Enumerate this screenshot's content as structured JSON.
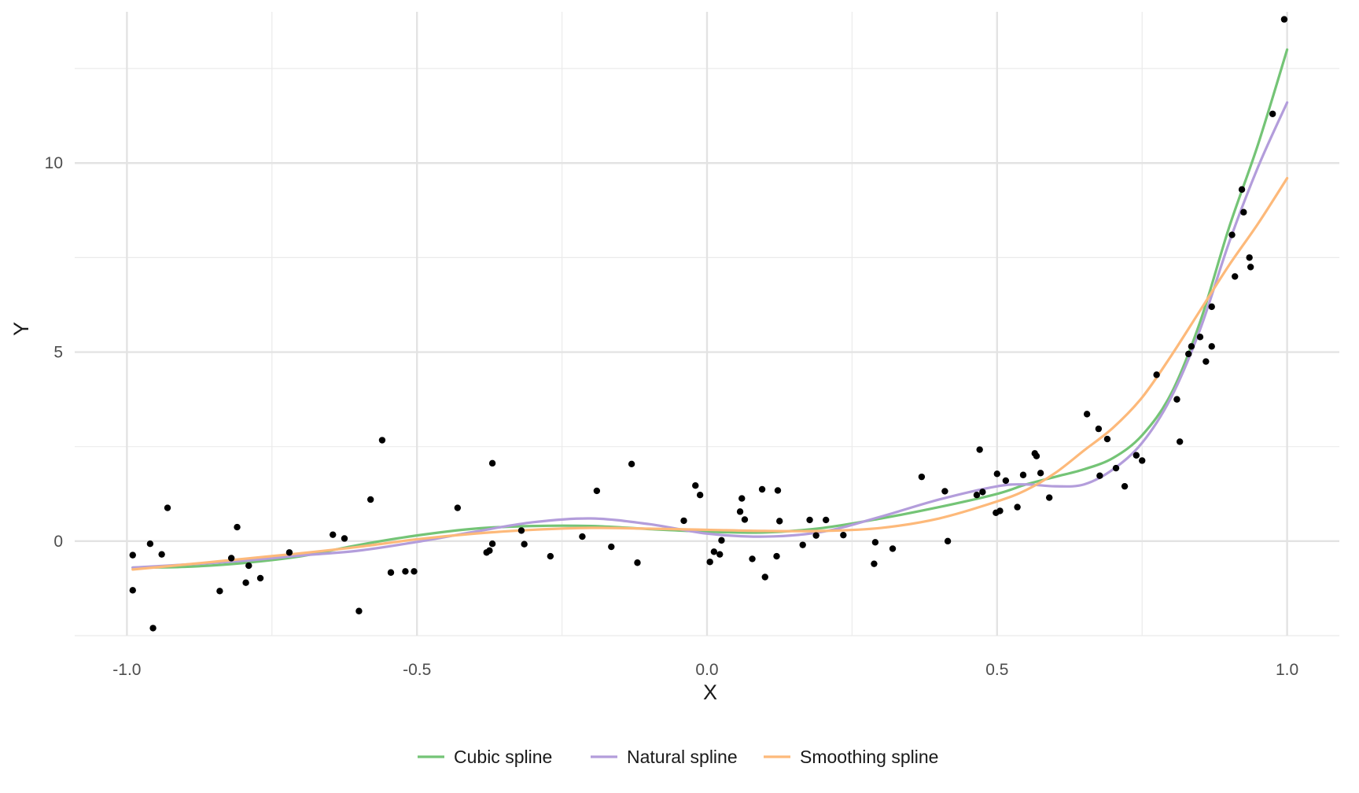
{
  "chart_data": {
    "type": "scatter",
    "title": "",
    "xlabel": "X",
    "ylabel": "Y",
    "xlim": [
      -1.09,
      1.09
    ],
    "ylim": [
      -2.5,
      14.0
    ],
    "x_ticks": [
      -1.0,
      -0.5,
      0.0,
      0.5,
      1.0
    ],
    "x_tick_labels": [
      "-1.0",
      "-0.5",
      "0.0",
      "0.5",
      "1.0"
    ],
    "y_ticks": [
      0,
      5,
      10
    ],
    "y_tick_labels": [
      "0",
      "5",
      "10"
    ],
    "x_minor_ticks": [
      -0.75,
      -0.25,
      0.25,
      0.75
    ],
    "y_minor_ticks": [
      -2.5,
      2.5,
      7.5,
      12.5
    ],
    "grid": true,
    "legend_position": "bottom",
    "points": [
      [
        -0.99,
        -1.3
      ],
      [
        -0.99,
        -0.37
      ],
      [
        -0.96,
        -0.07
      ],
      [
        -0.955,
        -2.3
      ],
      [
        -0.94,
        -0.35
      ],
      [
        -0.93,
        0.88
      ],
      [
        -0.84,
        -1.32
      ],
      [
        -0.82,
        -0.45
      ],
      [
        -0.81,
        0.37
      ],
      [
        -0.795,
        -1.1
      ],
      [
        -0.79,
        -0.65
      ],
      [
        -0.77,
        -0.98
      ],
      [
        -0.72,
        -0.3
      ],
      [
        -0.645,
        0.17
      ],
      [
        -0.625,
        0.07
      ],
      [
        -0.6,
        -1.85
      ],
      [
        -0.58,
        1.1
      ],
      [
        -0.56,
        2.67
      ],
      [
        -0.545,
        -0.83
      ],
      [
        -0.52,
        -0.8
      ],
      [
        -0.505,
        -0.8
      ],
      [
        -0.43,
        0.88
      ],
      [
        -0.38,
        -0.3
      ],
      [
        -0.375,
        -0.25
      ],
      [
        -0.37,
        -0.07
      ],
      [
        -0.37,
        2.06
      ],
      [
        -0.32,
        0.28
      ],
      [
        -0.315,
        -0.08
      ],
      [
        -0.27,
        -0.4
      ],
      [
        -0.215,
        0.12
      ],
      [
        -0.19,
        1.33
      ],
      [
        -0.165,
        -0.15
      ],
      [
        -0.13,
        2.04
      ],
      [
        -0.12,
        -0.57
      ],
      [
        -0.04,
        0.54
      ],
      [
        -0.02,
        1.47
      ],
      [
        -0.012,
        1.22
      ],
      [
        0.005,
        -0.55
      ],
      [
        0.012,
        -0.28
      ],
      [
        0.022,
        -0.35
      ],
      [
        0.025,
        0.02
      ],
      [
        0.057,
        0.78
      ],
      [
        0.06,
        1.13
      ],
      [
        0.065,
        0.57
      ],
      [
        0.078,
        -0.47
      ],
      [
        0.095,
        1.37
      ],
      [
        0.1,
        -0.95
      ],
      [
        0.12,
        -0.4
      ],
      [
        0.122,
        1.34
      ],
      [
        0.125,
        0.53
      ],
      [
        0.165,
        -0.1
      ],
      [
        0.177,
        0.56
      ],
      [
        0.188,
        0.15
      ],
      [
        0.205,
        0.56
      ],
      [
        0.235,
        0.16
      ],
      [
        0.288,
        -0.6
      ],
      [
        0.29,
        -0.03
      ],
      [
        0.32,
        -0.2
      ],
      [
        0.37,
        1.7
      ],
      [
        0.41,
        1.32
      ],
      [
        0.415,
        0.0
      ],
      [
        0.465,
        1.22
      ],
      [
        0.47,
        2.42
      ],
      [
        0.475,
        1.3
      ],
      [
        0.498,
        0.75
      ],
      [
        0.5,
        1.78
      ],
      [
        0.505,
        0.8
      ],
      [
        0.515,
        1.6
      ],
      [
        0.535,
        0.9
      ],
      [
        0.545,
        1.75
      ],
      [
        0.565,
        2.32
      ],
      [
        0.568,
        2.25
      ],
      [
        0.575,
        1.8
      ],
      [
        0.59,
        1.15
      ],
      [
        0.655,
        3.36
      ],
      [
        0.675,
        2.97
      ],
      [
        0.677,
        1.73
      ],
      [
        0.69,
        2.7
      ],
      [
        0.705,
        1.93
      ],
      [
        0.72,
        1.45
      ],
      [
        0.74,
        2.27
      ],
      [
        0.75,
        2.13
      ],
      [
        0.775,
        4.4
      ],
      [
        0.81,
        3.75
      ],
      [
        0.815,
        2.63
      ],
      [
        0.83,
        4.95
      ],
      [
        0.835,
        5.15
      ],
      [
        0.85,
        5.4
      ],
      [
        0.86,
        4.75
      ],
      [
        0.87,
        5.15
      ],
      [
        0.87,
        6.2
      ],
      [
        0.905,
        8.1
      ],
      [
        0.91,
        7.0
      ],
      [
        0.922,
        9.3
      ],
      [
        0.925,
        8.7
      ],
      [
        0.935,
        7.5
      ],
      [
        0.937,
        7.25
      ],
      [
        0.975,
        11.3
      ],
      [
        0.995,
        13.8
      ]
    ],
    "series": [
      {
        "name": "Cubic spline",
        "color": "#74c476",
        "x": [
          -0.99,
          -0.9,
          -0.8,
          -0.7,
          -0.6,
          -0.5,
          -0.4,
          -0.3,
          -0.2,
          -0.1,
          0.0,
          0.1,
          0.2,
          0.3,
          0.4,
          0.5,
          0.55,
          0.6,
          0.65,
          0.7,
          0.75,
          0.8,
          0.85,
          0.9,
          0.95,
          1.0
        ],
        "values": [
          -0.7,
          -0.68,
          -0.58,
          -0.4,
          -0.1,
          0.15,
          0.33,
          0.4,
          0.4,
          0.32,
          0.25,
          0.23,
          0.35,
          0.6,
          0.9,
          1.25,
          1.5,
          1.7,
          1.9,
          2.2,
          2.8,
          3.9,
          5.8,
          8.3,
          10.5,
          13.0
        ]
      },
      {
        "name": "Natural spline",
        "color": "#b39ddb",
        "x": [
          -0.99,
          -0.9,
          -0.8,
          -0.7,
          -0.6,
          -0.5,
          -0.4,
          -0.3,
          -0.2,
          -0.1,
          0.0,
          0.1,
          0.2,
          0.3,
          0.4,
          0.5,
          0.55,
          0.6,
          0.65,
          0.7,
          0.75,
          0.8,
          0.85,
          0.9,
          0.95,
          1.0
        ],
        "values": [
          -0.7,
          -0.62,
          -0.52,
          -0.38,
          -0.25,
          -0.02,
          0.25,
          0.5,
          0.6,
          0.45,
          0.2,
          0.12,
          0.25,
          0.65,
          1.1,
          1.45,
          1.5,
          1.45,
          1.5,
          1.9,
          2.6,
          3.8,
          5.6,
          7.9,
          9.9,
          11.6
        ]
      },
      {
        "name": "Smoothing spline",
        "color": "#fdb97a",
        "x": [
          -0.99,
          -0.9,
          -0.8,
          -0.7,
          -0.6,
          -0.5,
          -0.4,
          -0.3,
          -0.2,
          -0.1,
          0.0,
          0.1,
          0.2,
          0.3,
          0.4,
          0.5,
          0.55,
          0.6,
          0.65,
          0.7,
          0.75,
          0.8,
          0.85,
          0.9,
          0.95,
          1.0
        ],
        "values": [
          -0.75,
          -0.62,
          -0.47,
          -0.32,
          -0.15,
          0.05,
          0.2,
          0.3,
          0.35,
          0.33,
          0.3,
          0.27,
          0.27,
          0.35,
          0.6,
          1.05,
          1.35,
          1.8,
          2.4,
          3.0,
          3.8,
          4.9,
          6.1,
          7.3,
          8.4,
          9.6
        ]
      }
    ]
  }
}
